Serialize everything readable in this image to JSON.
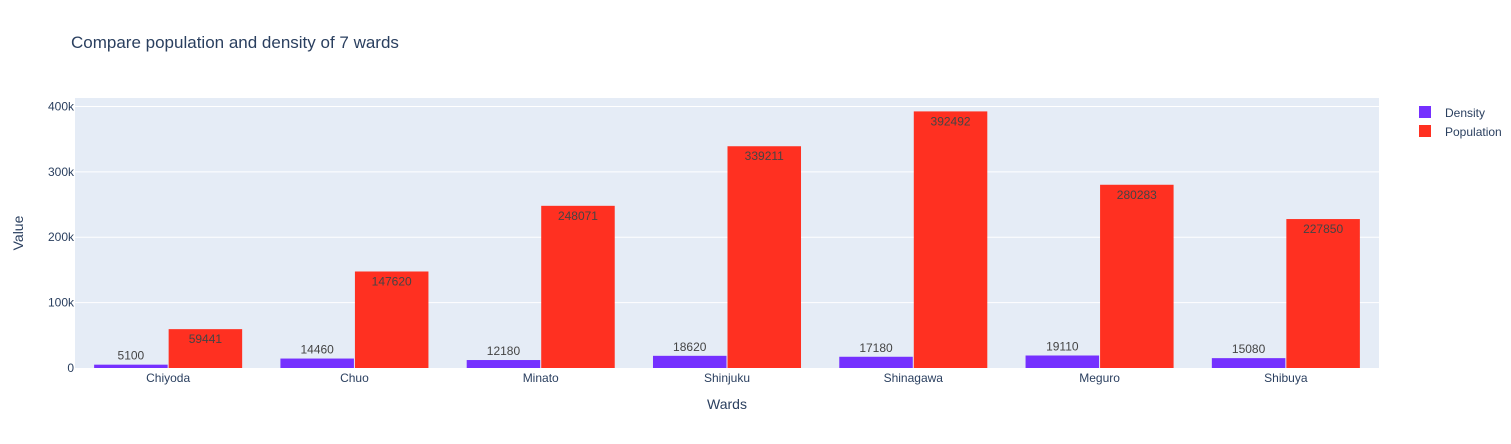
{
  "chart_data": {
    "type": "bar",
    "title": "Compare population and density of 7 wards",
    "xlabel": "Wards",
    "ylabel": "Value",
    "categories": [
      "Chiyoda",
      "Chuo",
      "Minato",
      "Shinjuku",
      "Shinagawa",
      "Meguro",
      "Shibuya"
    ],
    "series": [
      {
        "name": "Density",
        "color": "#7530ff",
        "values": [
          5100,
          14460,
          12180,
          18620,
          17180,
          19110,
          15080
        ]
      },
      {
        "name": "Population",
        "color": "#ff3021",
        "values": [
          59441,
          147620,
          248071,
          339211,
          392492,
          280283,
          227850
        ]
      }
    ],
    "ylim": [
      0,
      413000
    ],
    "yticks": [
      0,
      100000,
      200000,
      300000,
      400000
    ],
    "ytick_labels": [
      "0",
      "100k",
      "200k",
      "300k",
      "400k"
    ],
    "grid": true,
    "legend": "top-right",
    "colors": {
      "plot_background": "#e5ecf6",
      "grid": "#ffffff",
      "text": "#2a3f5f"
    }
  }
}
